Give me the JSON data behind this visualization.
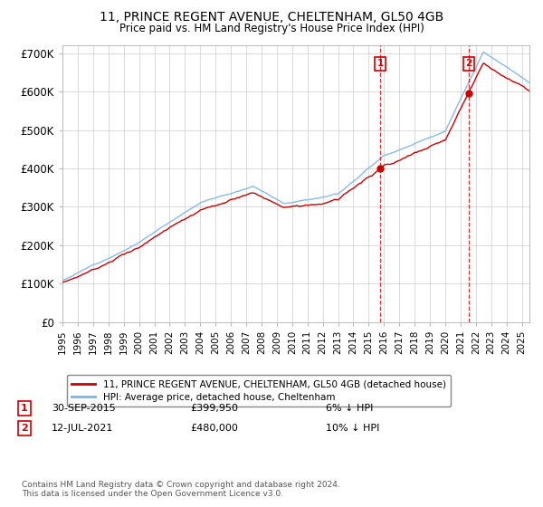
{
  "title": "11, PRINCE REGENT AVENUE, CHELTENHAM, GL50 4GB",
  "subtitle": "Price paid vs. HM Land Registry's House Price Index (HPI)",
  "ylim": [
    0,
    720000
  ],
  "yticks": [
    0,
    100000,
    200000,
    300000,
    400000,
    500000,
    600000,
    700000
  ],
  "ytick_labels": [
    "£0",
    "£100K",
    "£200K",
    "£300K",
    "£400K",
    "£500K",
    "£600K",
    "£700K"
  ],
  "hpi_color": "#7ab4e8",
  "price_color": "#cc0000",
  "transaction1_date": "30-SEP-2015",
  "transaction1_price": 399950,
  "transaction1_hpi_diff": "6% ↓ HPI",
  "transaction2_date": "12-JUL-2021",
  "transaction2_price": 480000,
  "transaction2_hpi_diff": "10% ↓ HPI",
  "legend_line1": "11, PRINCE REGENT AVENUE, CHELTENHAM, GL50 4GB (detached house)",
  "legend_line2": "HPI: Average price, detached house, Cheltenham",
  "footnote": "Contains HM Land Registry data © Crown copyright and database right 2024.\nThis data is licensed under the Open Government Licence v3.0.",
  "background_color": "#ffffff",
  "grid_color": "#cccccc",
  "t1_year": 2015.75,
  "t2_year": 2021.53,
  "xstart": 1995,
  "xend": 2025.5
}
